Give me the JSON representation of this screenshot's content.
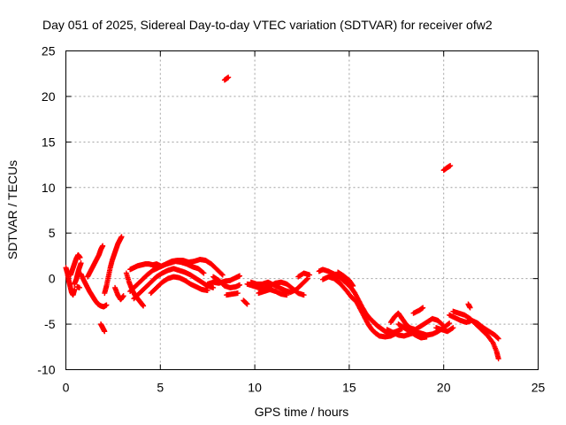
{
  "chart_data": {
    "type": "scatter",
    "title": "Day 051 of 2025, Sidereal Day-to-day VTEC variation (SDTVAR) for receiver ofw2",
    "xlabel": "GPS time / hours",
    "ylabel": "SDTVAR / TECUs",
    "xlim": [
      0,
      25
    ],
    "ylim": [
      -10,
      25
    ],
    "xticks": [
      0,
      5,
      10,
      15,
      20,
      25
    ],
    "yticks": [
      -10,
      -5,
      0,
      5,
      10,
      15,
      20,
      25
    ],
    "grid": true,
    "marker": "plus",
    "series": [
      {
        "name": "SDTVAR",
        "color": "#ff0000",
        "tracks": [
          [
            [
              0.0,
              1.2
            ],
            [
              0.08,
              0.6
            ],
            [
              0.15,
              -0.2
            ],
            [
              0.22,
              -0.8
            ],
            [
              0.3,
              -1.5
            ],
            [
              0.38,
              -1.8
            ],
            [
              0.46,
              -1.2
            ]
          ],
          [
            [
              0.25,
              0.4
            ],
            [
              0.35,
              1.0
            ],
            [
              0.45,
              1.6
            ],
            [
              0.55,
              2.2
            ],
            [
              0.65,
              2.6
            ],
            [
              0.75,
              2.3
            ]
          ],
          [
            [
              0.45,
              -0.6
            ],
            [
              0.55,
              -0.1
            ],
            [
              0.62,
              0.5
            ],
            [
              0.7,
              1.1
            ],
            [
              0.8,
              1.7
            ]
          ],
          [
            [
              0.6,
              -0.9
            ],
            [
              0.72,
              -1.0
            ]
          ],
          [
            [
              0.8,
              0.5
            ],
            [
              0.95,
              -0.2
            ],
            [
              1.1,
              -0.8
            ],
            [
              1.25,
              -1.4
            ],
            [
              1.4,
              -1.9
            ],
            [
              1.55,
              -2.4
            ],
            [
              1.7,
              -2.8
            ],
            [
              1.85,
              -3.0
            ],
            [
              2.0,
              -3.1
            ],
            [
              2.15,
              -2.9
            ]
          ],
          [
            [
              1.15,
              0.2
            ],
            [
              1.3,
              0.8
            ],
            [
              1.45,
              1.4
            ],
            [
              1.6,
              2.0
            ],
            [
              1.75,
              2.6
            ],
            [
              1.85,
              3.2
            ],
            [
              1.95,
              3.6
            ]
          ],
          [
            [
              1.85,
              -5.0
            ],
            [
              1.95,
              -5.4
            ],
            [
              2.05,
              -5.8
            ]
          ],
          [
            [
              2.05,
              -1.6
            ],
            [
              2.15,
              -0.8
            ],
            [
              2.25,
              0.2
            ],
            [
              2.35,
              1.2
            ],
            [
              2.45,
              2.0
            ],
            [
              2.55,
              2.6
            ],
            [
              2.65,
              3.2
            ],
            [
              2.75,
              3.8
            ],
            [
              2.85,
              4.2
            ],
            [
              2.95,
              4.6
            ]
          ],
          [
            [
              2.6,
              -1.0
            ],
            [
              2.75,
              -1.8
            ],
            [
              2.9,
              -2.3
            ],
            [
              3.05,
              -1.9
            ]
          ],
          [
            [
              3.2,
              0.6
            ],
            [
              3.35,
              -0.4
            ],
            [
              3.5,
              -1.2
            ],
            [
              3.65,
              -1.8
            ],
            [
              3.8,
              -2.2
            ],
            [
              3.95,
              -2.6
            ],
            [
              4.1,
              -3.0
            ]
          ],
          [
            [
              3.4,
              1.0
            ],
            [
              3.6,
              1.2
            ],
            [
              3.8,
              1.4
            ],
            [
              4.0,
              1.5
            ],
            [
              4.2,
              1.6
            ],
            [
              4.4,
              1.6
            ],
            [
              4.6,
              1.5
            ],
            [
              4.8,
              1.6
            ],
            [
              5.0,
              1.4
            ]
          ],
          [
            [
              3.4,
              -1.4
            ],
            [
              3.7,
              -0.8
            ],
            [
              4.0,
              -0.2
            ],
            [
              4.3,
              0.4
            ],
            [
              4.6,
              0.9
            ],
            [
              4.9,
              1.2
            ],
            [
              5.2,
              1.5
            ],
            [
              5.5,
              1.7
            ],
            [
              5.8,
              1.9
            ],
            [
              6.1,
              1.8
            ],
            [
              6.4,
              1.6
            ],
            [
              6.7,
              1.3
            ],
            [
              7.0,
              1.1
            ],
            [
              7.3,
              0.6
            ]
          ],
          [
            [
              3.6,
              -2.2
            ],
            [
              3.9,
              -1.6
            ],
            [
              4.2,
              -1.0
            ],
            [
              4.5,
              -0.4
            ],
            [
              4.8,
              0.2
            ],
            [
              5.1,
              0.6
            ],
            [
              5.4,
              0.9
            ],
            [
              5.7,
              1.1
            ],
            [
              6.0,
              0.9
            ],
            [
              6.3,
              0.7
            ],
            [
              6.6,
              0.4
            ],
            [
              6.9,
              0.0
            ],
            [
              7.2,
              -0.4
            ],
            [
              7.5,
              -0.8
            ],
            [
              7.8,
              -1.0
            ]
          ],
          [
            [
              4.5,
              -1.6
            ],
            [
              4.8,
              -1.0
            ],
            [
              5.1,
              -0.4
            ],
            [
              5.4,
              0.0
            ],
            [
              5.7,
              0.2
            ],
            [
              6.0,
              0.1
            ],
            [
              6.3,
              -0.2
            ],
            [
              6.6,
              -0.6
            ],
            [
              6.9,
              -0.9
            ],
            [
              7.2,
              -1.2
            ],
            [
              7.5,
              -1.3
            ]
          ],
          [
            [
              5.0,
              1.3
            ],
            [
              5.3,
              1.6
            ],
            [
              5.6,
              1.9
            ],
            [
              5.9,
              2.0
            ],
            [
              6.2,
              2.0
            ],
            [
              6.5,
              1.8
            ],
            [
              6.8,
              1.9
            ],
            [
              7.1,
              2.1
            ],
            [
              7.4,
              2.0
            ],
            [
              7.7,
              1.6
            ],
            [
              8.0,
              1.0
            ],
            [
              8.3,
              0.4
            ]
          ],
          [
            [
              7.5,
              -0.6
            ],
            [
              7.8,
              -0.4
            ],
            [
              8.1,
              -0.5
            ],
            [
              8.4,
              -0.3
            ],
            [
              8.7,
              -0.2
            ],
            [
              9.0,
              0.1
            ],
            [
              9.2,
              0.3
            ]
          ],
          [
            [
              7.8,
              0.2
            ],
            [
              8.1,
              -0.2
            ],
            [
              8.4,
              -0.8
            ],
            [
              8.7,
              -1.0
            ],
            [
              9.0,
              -0.9
            ],
            [
              9.2,
              -0.7
            ]
          ],
          [
            [
              8.5,
              -1.8
            ],
            [
              8.8,
              -1.7
            ],
            [
              9.1,
              -1.6
            ]
          ],
          [
            [
              8.4,
              21.8
            ],
            [
              8.6,
              22.1
            ]
          ],
          [
            [
              9.4,
              -2.4
            ],
            [
              9.6,
              -2.8
            ]
          ],
          [
            [
              9.6,
              -0.6
            ],
            [
              9.9,
              -0.8
            ],
            [
              10.2,
              -1.0
            ],
            [
              10.5,
              -1.1
            ],
            [
              10.8,
              -0.8
            ],
            [
              11.1,
              -0.5
            ],
            [
              11.4,
              -0.4
            ],
            [
              11.7,
              -0.6
            ],
            [
              12.0,
              -1.1
            ],
            [
              12.3,
              -1.6
            ],
            [
              12.6,
              -1.8
            ]
          ],
          [
            [
              9.8,
              -0.4
            ],
            [
              10.1,
              -0.6
            ],
            [
              10.4,
              -0.6
            ],
            [
              10.7,
              -0.4
            ],
            [
              11.0,
              -0.7
            ],
            [
              11.3,
              -1.0
            ],
            [
              11.6,
              -1.3
            ],
            [
              11.9,
              -1.5
            ],
            [
              12.2,
              -1.2
            ],
            [
              12.5,
              -0.6
            ],
            [
              12.8,
              0.0
            ]
          ],
          [
            [
              10.2,
              -1.6
            ],
            [
              10.5,
              -1.4
            ],
            [
              10.8,
              -1.2
            ],
            [
              11.1,
              -1.4
            ],
            [
              11.4,
              -1.7
            ],
            [
              11.7,
              -1.8
            ]
          ],
          [
            [
              12.3,
              0.2
            ],
            [
              12.6,
              0.6
            ],
            [
              12.9,
              0.4
            ]
          ],
          [
            [
              13.4,
              0.8
            ],
            [
              13.6,
              1.0
            ],
            [
              13.9,
              0.8
            ],
            [
              14.2,
              0.5
            ],
            [
              14.5,
              0.1
            ],
            [
              14.8,
              -0.4
            ],
            [
              15.1,
              -1.0
            ],
            [
              15.3,
              -1.6
            ],
            [
              15.5,
              -2.4
            ],
            [
              15.7,
              -3.2
            ],
            [
              15.9,
              -3.9
            ],
            [
              16.1,
              -4.4
            ],
            [
              16.3,
              -4.8
            ],
            [
              16.5,
              -5.2
            ],
            [
              16.7,
              -5.5
            ],
            [
              16.9,
              -5.8
            ],
            [
              17.2,
              -6.0
            ],
            [
              17.5,
              -5.8
            ],
            [
              17.8,
              -5.5
            ]
          ],
          [
            [
              13.6,
              -0.1
            ],
            [
              13.9,
              0.2
            ],
            [
              14.2,
              0.0
            ],
            [
              14.5,
              -0.5
            ],
            [
              14.8,
              -1.2
            ],
            [
              15.1,
              -2.0
            ],
            [
              15.4,
              -2.6
            ],
            [
              15.6,
              -3.4
            ],
            [
              15.8,
              -4.2
            ],
            [
              16.0,
              -5.0
            ],
            [
              16.2,
              -5.6
            ],
            [
              16.4,
              -6.0
            ],
            [
              16.6,
              -6.3
            ],
            [
              16.9,
              -6.4
            ],
            [
              17.2,
              -6.3
            ],
            [
              17.5,
              -6.0
            ]
          ],
          [
            [
              14.4,
              0.7
            ],
            [
              14.7,
              0.3
            ],
            [
              15.0,
              -0.2
            ],
            [
              15.2,
              -0.8
            ]
          ],
          [
            [
              17.2,
              -4.8
            ],
            [
              17.4,
              -4.2
            ],
            [
              17.6,
              -3.8
            ],
            [
              17.8,
              -4.4
            ],
            [
              18.0,
              -5.0
            ],
            [
              18.2,
              -5.4
            ],
            [
              18.5,
              -5.6
            ],
            [
              18.8,
              -5.2
            ],
            [
              19.1,
              -4.8
            ],
            [
              19.4,
              -4.4
            ],
            [
              19.7,
              -4.6
            ],
            [
              20.0,
              -5.2
            ]
          ],
          [
            [
              17.0,
              -5.6
            ],
            [
              17.3,
              -5.9
            ],
            [
              17.6,
              -6.2
            ],
            [
              17.9,
              -6.3
            ],
            [
              18.2,
              -6.1
            ],
            [
              18.5,
              -5.9
            ],
            [
              18.8,
              -6.0
            ],
            [
              19.1,
              -6.2
            ],
            [
              19.4,
              -6.1
            ],
            [
              19.7,
              -5.8
            ],
            [
              20.0,
              -5.4
            ],
            [
              20.3,
              -4.9
            ]
          ],
          [
            [
              17.6,
              -5.0
            ],
            [
              17.9,
              -5.4
            ],
            [
              18.2,
              -5.8
            ],
            [
              18.5,
              -6.2
            ],
            [
              18.8,
              -6.5
            ],
            [
              19.1,
              -6.4
            ]
          ],
          [
            [
              18.4,
              -3.8
            ],
            [
              18.7,
              -3.5
            ],
            [
              18.9,
              -3.2
            ]
          ],
          [
            [
              19.6,
              -5.4
            ],
            [
              19.9,
              -5.6
            ],
            [
              20.2,
              -5.8
            ],
            [
              20.5,
              -5.4
            ]
          ],
          [
            [
              20.0,
              11.9
            ],
            [
              20.2,
              12.2
            ],
            [
              20.35,
              12.4
            ]
          ],
          [
            [
              20.3,
              -4.0
            ],
            [
              20.6,
              -4.3
            ],
            [
              20.9,
              -4.6
            ],
            [
              21.2,
              -4.8
            ],
            [
              21.5,
              -4.6
            ],
            [
              21.8,
              -4.9
            ],
            [
              22.1,
              -5.4
            ],
            [
              22.4,
              -5.8
            ],
            [
              22.7,
              -6.2
            ],
            [
              22.9,
              -6.6
            ]
          ],
          [
            [
              20.5,
              -3.6
            ],
            [
              20.8,
              -3.8
            ],
            [
              21.1,
              -4.0
            ],
            [
              21.4,
              -4.4
            ],
            [
              21.7,
              -5.0
            ],
            [
              22.0,
              -5.6
            ],
            [
              22.3,
              -6.2
            ],
            [
              22.6,
              -7.0
            ],
            [
              22.8,
              -8.0
            ],
            [
              22.9,
              -8.8
            ]
          ],
          [
            [
              21.3,
              -2.8
            ],
            [
              21.4,
              -3.2
            ]
          ]
        ]
      }
    ]
  }
}
